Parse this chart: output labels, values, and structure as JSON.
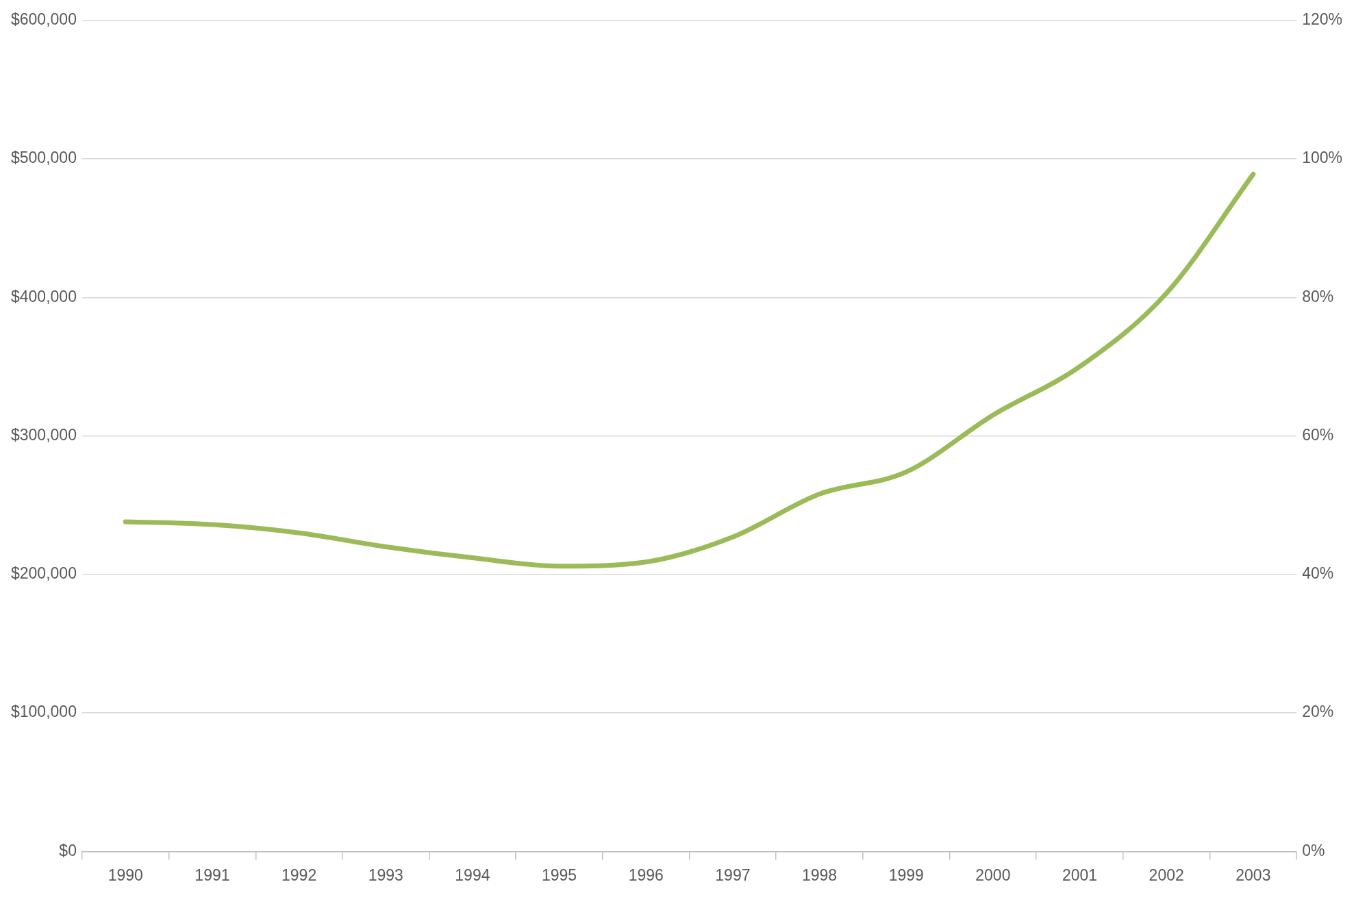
{
  "chart_data": {
    "type": "line",
    "categories": [
      "1990",
      "1991",
      "1992",
      "1993",
      "1994",
      "1995",
      "1996",
      "1997",
      "1998",
      "1999",
      "2000",
      "2001",
      "2002",
      "2003"
    ],
    "series": [
      {
        "color": "#9bbb59",
        "values": [
          238000,
          236000,
          230000,
          220000,
          212000,
          206000,
          209000,
          227000,
          258000,
          274000,
          315000,
          350000,
          403000,
          489000
        ]
      }
    ],
    "ylim": [
      0,
      600000
    ],
    "yticks": [
      {
        "value": 0,
        "label": "$0"
      },
      {
        "value": 100000,
        "label": "$100,000"
      },
      {
        "value": 200000,
        "label": "$200,000"
      },
      {
        "value": 300000,
        "label": "$300,000"
      },
      {
        "value": 400000,
        "label": "$400,000"
      },
      {
        "value": 500000,
        "label": "$500,000"
      },
      {
        "value": 600000,
        "label": "$600,000"
      }
    ],
    "y2lim": [
      0,
      120
    ],
    "y2ticks": [
      {
        "value": 0,
        "label": "0%"
      },
      {
        "value": 20,
        "label": "20%"
      },
      {
        "value": 40,
        "label": "40%"
      },
      {
        "value": 60,
        "label": "60%"
      },
      {
        "value": 80,
        "label": "80%"
      },
      {
        "value": 100,
        "label": "100%"
      },
      {
        "value": 120,
        "label": "120%"
      }
    ],
    "grid": "y",
    "legend": false
  }
}
